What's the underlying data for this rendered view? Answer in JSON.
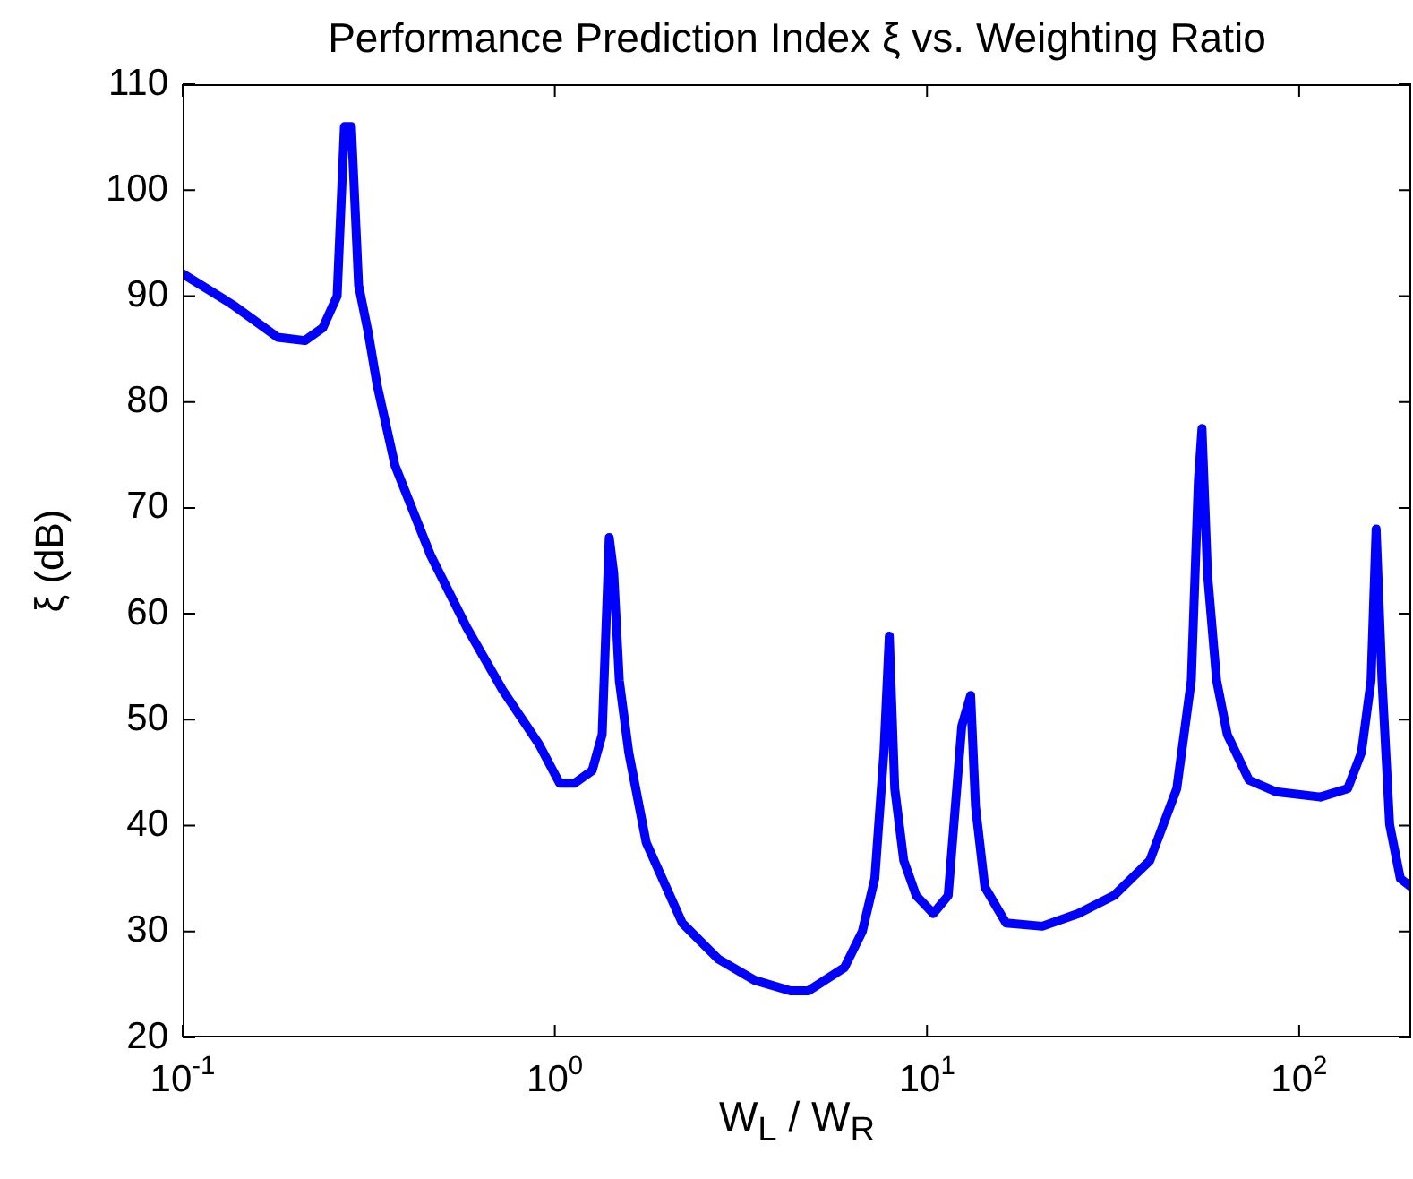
{
  "chart_data": {
    "type": "line",
    "title": "Performance Prediction Index ξ vs. Weighting Ratio",
    "xlabel": "W$_{L}$ / W$_{R}$",
    "ylabel": "ξ (dB)",
    "log": "x",
    "grid": false,
    "legend": false,
    "marker": "none",
    "line_style": "solid",
    "xlim": [
      0.1,
      200
    ],
    "ylim": [
      20,
      110
    ],
    "xticks": [
      {
        "value": 0.1,
        "label": "10$^{-1}$"
      },
      {
        "value": 1,
        "label": "10$^{0}$"
      },
      {
        "value": 10,
        "label": "10$^{1}$"
      },
      {
        "value": 100,
        "label": "10$^{2}$"
      }
    ],
    "yticks": [
      20,
      30,
      40,
      50,
      60,
      70,
      80,
      90,
      100,
      110
    ],
    "x": [
      0.1,
      0.136,
      0.18,
      0.213,
      0.238,
      0.26,
      0.272,
      0.284,
      0.297,
      0.315,
      0.333,
      0.372,
      0.464,
      0.58,
      0.724,
      0.906,
      1.03,
      1.13,
      1.26,
      1.34,
      1.4,
      1.44,
      1.49,
      1.58,
      1.76,
      2.2,
      2.75,
      3.44,
      4.3,
      4.8,
      6.0,
      6.7,
      7.24,
      7.66,
      7.92,
      8.19,
      8.66,
      9.35,
      10.4,
      11.4,
      12.4,
      13.1,
      13.5,
      14.3,
      16.3,
      20.4,
      25.5,
      31.8,
      39.7,
      46.9,
      51.3,
      53.6,
      54.8,
      56.7,
      60,
      64.1,
      73.3,
      86.6,
      114,
      135,
      147,
      156,
      161,
      167,
      175,
      187,
      200
    ],
    "series": [
      {
        "color": "#0000ff",
        "values": [
          92.1,
          89.2,
          86.1,
          85.8,
          87,
          90,
          106,
          106,
          91,
          86.6,
          81.6,
          74,
          65.5,
          58.7,
          52.8,
          47.7,
          44,
          44,
          45.2,
          48.6,
          67.2,
          63.8,
          53.7,
          46.9,
          38.4,
          30.8,
          27.4,
          25.4,
          24.4,
          24.4,
          26.6,
          30,
          35,
          46.9,
          57.9,
          43.5,
          36.7,
          33.4,
          31.7,
          33.4,
          49.4,
          52.3,
          41.8,
          34.2,
          30.8,
          30.5,
          31.7,
          33.4,
          36.7,
          43.5,
          53.7,
          72.6,
          77.5,
          63.8,
          53.7,
          48.6,
          44.3,
          43.2,
          42.7,
          43.5,
          46.9,
          53.7,
          68,
          53.7,
          40.1,
          35,
          34.2
        ]
      }
    ]
  }
}
